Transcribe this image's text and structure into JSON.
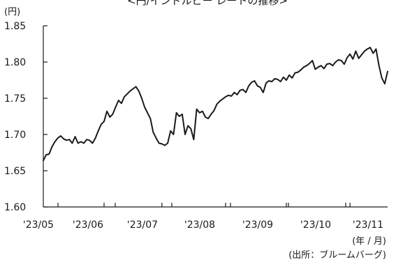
{
  "chart_data": {
    "type": "line",
    "title": "<円/インドルピー レートの推移>",
    "yunit": "(円)",
    "xunit": "(年 / 月)",
    "source": "(出所：ブルームバーグ)",
    "ylim": [
      1.6,
      1.85
    ],
    "yticks": [
      "1.85",
      "1.80",
      "1.75",
      "1.70",
      "1.65",
      "1.60"
    ],
    "xticks": [
      "'23/05",
      "'23/06",
      "'23/07",
      "'23/08",
      "'23/09",
      "'23/10",
      "'23/11"
    ],
    "grid": false,
    "series": [
      {
        "values": [
          1.664,
          1.672,
          1.673,
          1.683,
          1.69,
          1.695,
          1.698,
          1.694,
          1.692,
          1.693,
          1.688,
          1.697,
          1.688,
          1.69,
          1.688,
          1.693,
          1.692,
          1.688,
          1.695,
          1.705,
          1.714,
          1.718,
          1.732,
          1.724,
          1.728,
          1.738,
          1.747,
          1.743,
          1.752,
          1.756,
          1.76,
          1.763,
          1.766,
          1.76,
          1.75,
          1.738,
          1.73,
          1.722,
          1.703,
          1.695,
          1.688,
          1.687,
          1.685,
          1.688,
          1.705,
          1.7,
          1.73,
          1.725,
          1.728,
          1.7,
          1.712,
          1.708,
          1.693,
          1.735,
          1.73,
          1.732,
          1.724,
          1.722,
          1.728,
          1.733,
          1.742,
          1.746,
          1.749,
          1.752,
          1.754,
          1.753,
          1.758,
          1.755,
          1.761,
          1.762,
          1.758,
          1.767,
          1.772,
          1.774,
          1.767,
          1.765,
          1.758,
          1.771,
          1.774,
          1.773,
          1.777,
          1.776,
          1.773,
          1.779,
          1.775,
          1.782,
          1.778,
          1.785,
          1.786,
          1.789,
          1.793,
          1.795,
          1.798,
          1.802,
          1.79,
          1.793,
          1.795,
          1.791,
          1.797,
          1.798,
          1.795,
          1.8,
          1.803,
          1.802,
          1.797,
          1.806,
          1.811,
          1.804,
          1.815,
          1.805,
          1.81,
          1.815,
          1.818,
          1.82,
          1.812,
          1.818,
          1.795,
          1.778,
          1.77,
          1.787
        ]
      }
    ]
  }
}
